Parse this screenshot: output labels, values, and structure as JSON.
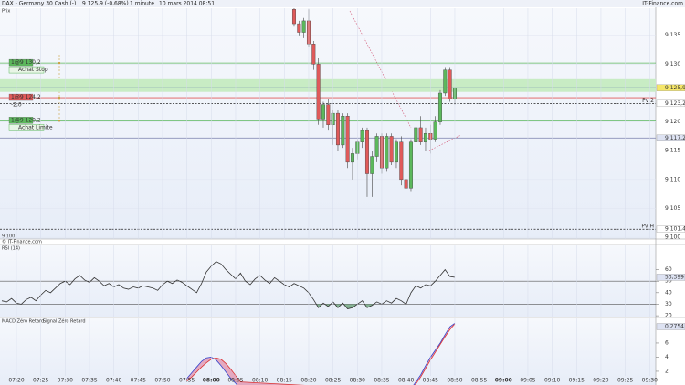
{
  "header": {
    "instrument": "DAX - Germany 30 Cash (-)",
    "quote": "9 125,9 (-0,68%)",
    "interval": "1 minute",
    "date": "10 mars 2014 08:51",
    "brand": "IT-Finance.com",
    "row_label": "Prix",
    "copyright": "© IT-Finance.com",
    "cursor_price": "9 100"
  },
  "chart_data": [
    {
      "type": "candlestick",
      "x": [
        "08:17",
        "08:18",
        "08:19",
        "08:20",
        "08:21",
        "08:22",
        "08:23",
        "08:24",
        "08:25",
        "08:26",
        "08:27",
        "08:28",
        "08:29",
        "08:30",
        "08:31",
        "08:32",
        "08:33",
        "08:34",
        "08:35",
        "08:36",
        "08:37",
        "08:38",
        "08:39",
        "08:40",
        "08:41",
        "08:42",
        "08:43",
        "08:44",
        "08:45",
        "08:46",
        "08:47",
        "08:48",
        "08:49",
        "08:50"
      ],
      "open": [
        9139.5,
        9137,
        9135.5,
        9137.5,
        9133.5,
        9130,
        9120.5,
        9123,
        9119.5,
        9121.5,
        9116,
        9121,
        9113,
        9114.5,
        9116.5,
        9118.5,
        9111,
        9114,
        9117.5,
        9112,
        9117.5,
        9113,
        9116.5,
        9110,
        9108.5,
        9116.5,
        9119,
        9116.5,
        9118,
        9117,
        9120,
        9125,
        9129,
        9124
      ],
      "high": [
        9139.7,
        9137.5,
        9138,
        9139.5,
        9134,
        9131,
        9123.5,
        9124,
        9122,
        9122,
        9121.5,
        9121.5,
        9115.5,
        9117,
        9119,
        9119,
        9115,
        9118,
        9118,
        9118,
        9118,
        9117,
        9117.5,
        9111,
        9117,
        9120,
        9121,
        9119,
        9119.5,
        9121,
        9125.5,
        9129.5,
        9129.5,
        9126
      ],
      "low": [
        9136.5,
        9135,
        9134.5,
        9133,
        9129,
        9119.5,
        9119,
        9118.5,
        9116,
        9115,
        9115.5,
        9112,
        9110,
        9113.5,
        9115.5,
        9107,
        9107,
        9113,
        9111,
        9111.5,
        9112.5,
        9112,
        9109,
        9104.5,
        9108,
        9115,
        9116,
        9115,
        9114.5,
        9116.5,
        9119.5,
        9124.5,
        9123.5,
        9123
      ],
      "close": [
        9137,
        9135.5,
        9137.5,
        9133.5,
        9130,
        9120.5,
        9123,
        9119.5,
        9121.5,
        9116,
        9121,
        9113,
        9114.5,
        9116.5,
        9118.5,
        9111,
        9114,
        9117.5,
        9112,
        9117.5,
        9113,
        9116.5,
        9110,
        9108.5,
        9116.5,
        9119,
        9116.5,
        9118,
        9117,
        9120,
        9125,
        9129,
        9124,
        9125.9
      ],
      "up_color": "#5cb85c",
      "down_color": "#e05a5a",
      "ylim": [
        9099.7,
        9139.7
      ],
      "yticks": [
        {
          "value": 9100,
          "label": "9 100"
        },
        {
          "value": 9105,
          "label": "9 105"
        },
        {
          "value": 9110,
          "label": "9 110"
        },
        {
          "value": 9115,
          "label": "9 115"
        },
        {
          "value": 9120,
          "label": "9 120"
        },
        {
          "value": 9130,
          "label": "9 130"
        },
        {
          "value": 9135,
          "label": "9 135"
        }
      ],
      "xticks": [
        "07:20",
        "07:25",
        "07:30",
        "07:35",
        "07:40",
        "07:45",
        "07:50",
        "07:55",
        "08:00",
        "08:05",
        "08:10",
        "08:15",
        "08:20",
        "08:25",
        "08:30",
        "08:35",
        "08:40",
        "08:45",
        "08:50",
        "08:55",
        "09:00",
        "09:05",
        "09:10",
        "09:15",
        "09:20",
        "09:25",
        "09:30"
      ],
      "zone": {
        "from": 9125.2,
        "to": 9127.4,
        "color": "#c8ecc4"
      },
      "levels": [
        {
          "value": 9125.9,
          "label": "9 125,9",
          "color": "#2a3a9a",
          "dash": false,
          "label_bg": "#f5e66a"
        },
        {
          "value": 9123.2,
          "label": "9 123,2",
          "color": "#222222",
          "dash": true,
          "label_bg": "#ffffff",
          "tag": "Pv 2"
        },
        {
          "value": 9117.2,
          "label": "9 117,2",
          "color": "#8a90b8",
          "dash": false,
          "label_bg": "#dde2f2"
        },
        {
          "value": 9101.4,
          "label": "9 101,4",
          "color": "#222222",
          "dash": true,
          "label_bg": "#ffffff",
          "tag": "Pv H"
        }
      ],
      "orders": [
        {
          "label": "1@9 130,2",
          "value": 9130.2,
          "action": "Achat Stop",
          "color": "#5cb85c"
        },
        {
          "label": "1@9 124,2",
          "value": 9124.2,
          "pnl": "-2,0",
          "color": "#e05a5a"
        },
        {
          "label": "1@9 120,2",
          "value": 9120.2,
          "action": "Achat Limite",
          "color": "#5cb85c"
        }
      ]
    },
    {
      "type": "line",
      "title": "RSI (14)",
      "color": "#333333",
      "fill_color": "#5a9a6a",
      "x": [
        "07:17",
        "07:18",
        "07:19",
        "07:20",
        "07:21",
        "07:22",
        "07:23",
        "07:24",
        "07:25",
        "07:26",
        "07:27",
        "07:28",
        "07:29",
        "07:30",
        "07:31",
        "07:32",
        "07:33",
        "07:34",
        "07:35",
        "07:36",
        "07:37",
        "07:38",
        "07:39",
        "07:40",
        "07:41",
        "07:42",
        "07:43",
        "07:44",
        "07:45",
        "07:46",
        "07:47",
        "07:48",
        "07:49",
        "07:50",
        "07:51",
        "07:52",
        "07:53",
        "07:54",
        "07:55",
        "07:56",
        "07:57",
        "07:58",
        "07:59",
        "08:00",
        "08:01",
        "08:02",
        "08:03",
        "08:04",
        "08:05",
        "08:06",
        "08:07",
        "08:08",
        "08:09",
        "08:10",
        "08:11",
        "08:12",
        "08:13",
        "08:14",
        "08:15",
        "08:16",
        "08:17",
        "08:18",
        "08:19",
        "08:20",
        "08:21",
        "08:22",
        "08:23",
        "08:24",
        "08:25",
        "08:26",
        "08:27",
        "08:28",
        "08:29",
        "08:30",
        "08:31",
        "08:32",
        "08:33",
        "08:34",
        "08:35",
        "08:36",
        "08:37",
        "08:38",
        "08:39",
        "08:40",
        "08:41",
        "08:42",
        "08:43",
        "08:44",
        "08:45",
        "08:46",
        "08:47",
        "08:48",
        "08:49",
        "08:50"
      ],
      "values": [
        33,
        32,
        35,
        31,
        30,
        34,
        36,
        33,
        38,
        42,
        40,
        44,
        48,
        50,
        47,
        52,
        55,
        51,
        49,
        53,
        50,
        46,
        48,
        45,
        47,
        44,
        43,
        45,
        44,
        46,
        45,
        44,
        42,
        47,
        50,
        48,
        51,
        49,
        46,
        43,
        40,
        48,
        58,
        63,
        67,
        65,
        60,
        56,
        52,
        57,
        50,
        47,
        52,
        55,
        51,
        48,
        53,
        50,
        47,
        45,
        48,
        46,
        44,
        40,
        34,
        27,
        31,
        28,
        32,
        27,
        31,
        26,
        27,
        30,
        33,
        27,
        29,
        32,
        30,
        33,
        31,
        35,
        33,
        30,
        40,
        46,
        44,
        47,
        46,
        50,
        55,
        60,
        54,
        53.399
      ],
      "last_label": "53,399",
      "ylim": [
        18.5,
        75.5
      ],
      "yticks": [
        20,
        30,
        40,
        50,
        60
      ],
      "ref_lines": [
        30,
        50
      ]
    },
    {
      "type": "line",
      "fill_color": "#e07a9a",
      "x": [
        "07:55",
        "07:56",
        "07:57",
        "07:58",
        "07:59",
        "08:00",
        "08:01",
        "08:02",
        "08:03",
        "08:04",
        "08:05",
        "08:06",
        "08:41",
        "08:42",
        "08:43",
        "08:44",
        "08:45",
        "08:46",
        "08:47",
        "08:48",
        "08:49",
        "08:50"
      ],
      "series": [
        {
          "name": "MACD Zéro Retard",
          "color": "#3344cc",
          "values": [
            1.0,
            1.8,
            2.6,
            3.4,
            3.9,
            4.0,
            3.6,
            2.8,
            1.9,
            1.0,
            0.3,
            -0.5,
            -0.5,
            0.5,
            1.5,
            2.8,
            4.0,
            5.0,
            6.0,
            7.2,
            8.3,
            8.8
          ]
        },
        {
          "name": "Signal Zéro Retard",
          "color": "#dd3333",
          "values": [
            0.6,
            1.2,
            1.9,
            2.6,
            3.2,
            3.7,
            3.9,
            3.7,
            3.1,
            2.3,
            1.4,
            0.5,
            -0.8,
            0.2,
            1.2,
            2.4,
            3.6,
            4.7,
            5.8,
            6.9,
            7.9,
            8.7
          ]
        }
      ],
      "annotation": "0,2754",
      "ylim": [
        0.06,
        9.35
      ],
      "yticks": [
        2,
        4,
        6
      ]
    }
  ]
}
